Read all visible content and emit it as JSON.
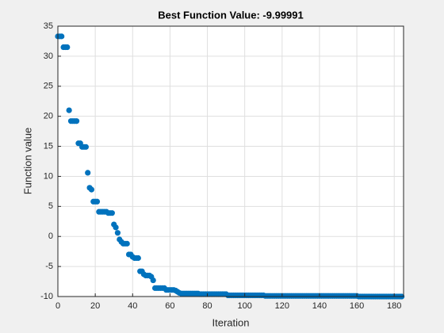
{
  "chart_data": {
    "type": "scatter",
    "title": "Best Function Value: -9.99991",
    "xlabel": "Iteration",
    "ylabel": "Function value",
    "color": "#0072bd",
    "grid": true,
    "xlim": [
      0,
      185
    ],
    "xticks": [
      0,
      20,
      40,
      60,
      80,
      100,
      120,
      140,
      160,
      180
    ],
    "ylim": [
      -10,
      35
    ],
    "yticks": [
      -10,
      -5,
      0,
      5,
      10,
      15,
      20,
      25,
      30,
      35
    ],
    "x": [
      0,
      1,
      2,
      3,
      4,
      5,
      6,
      7,
      8,
      9,
      10,
      11,
      12,
      13,
      14,
      15,
      16,
      17,
      18,
      19,
      20,
      21,
      22,
      23,
      24,
      25,
      26,
      27,
      28,
      29,
      30,
      31,
      32,
      33,
      34,
      35,
      36,
      37,
      38,
      39,
      40,
      41,
      42,
      43,
      44,
      45,
      46,
      47,
      48,
      49,
      50,
      51,
      52,
      53,
      54,
      55,
      56,
      57,
      58,
      59,
      60,
      61,
      62,
      63,
      64,
      65,
      66,
      67,
      68,
      69,
      70,
      71,
      72,
      73,
      74,
      75,
      76,
      77,
      78,
      79,
      80,
      81,
      82,
      83,
      84,
      85,
      86,
      87,
      88,
      89,
      90,
      91,
      92,
      93,
      94,
      95,
      96,
      97,
      98,
      99,
      100,
      101,
      102,
      103,
      104,
      105,
      106,
      107,
      108,
      109,
      110,
      111,
      112,
      113,
      114,
      115,
      116,
      117,
      118,
      119,
      120,
      121,
      122,
      123,
      124,
      125,
      126,
      127,
      128,
      129,
      130,
      131,
      132,
      133,
      134,
      135,
      136,
      137,
      138,
      139,
      140,
      141,
      142,
      143,
      144,
      145,
      146,
      147,
      148,
      149,
      150,
      151,
      152,
      153,
      154,
      155,
      156,
      157,
      158,
      159,
      160,
      161,
      162,
      163,
      164,
      165,
      166,
      167,
      168,
      169,
      170,
      171,
      172,
      173,
      174,
      175,
      176,
      177,
      178,
      179,
      180,
      181,
      182,
      183,
      184
    ],
    "values": [
      33.3,
      33.3,
      33.3,
      31.5,
      31.5,
      31.5,
      21,
      19.2,
      19.2,
      19.2,
      19.2,
      15.5,
      15.5,
      14.9,
      14.9,
      14.9,
      10.6,
      8.1,
      7.8,
      5.8,
      5.8,
      5.8,
      4.1,
      4.1,
      4.1,
      4.1,
      4.1,
      3.9,
      3.9,
      3.9,
      2.0,
      1.5,
      0.6,
      -0.5,
      -0.9,
      -1.2,
      -1.2,
      -1.2,
      -3.0,
      -3.0,
      -3.4,
      -3.6,
      -3.6,
      -3.6,
      -5.8,
      -5.8,
      -6.3,
      -6.5,
      -6.5,
      -6.5,
      -6.7,
      -7.3,
      -8.6,
      -8.6,
      -8.6,
      -8.6,
      -8.6,
      -8.6,
      -8.9,
      -8.9,
      -8.9,
      -8.9,
      -8.9,
      -9.0,
      -9.2,
      -9.4,
      -9.5,
      -9.5,
      -9.5,
      -9.5,
      -9.5,
      -9.5,
      -9.5,
      -9.5,
      -9.5,
      -9.5,
      -9.6,
      -9.6,
      -9.6,
      -9.6,
      -9.6,
      -9.6,
      -9.6,
      -9.6,
      -9.6,
      -9.6,
      -9.6,
      -9.6,
      -9.6,
      -9.6,
      -9.6,
      -9.8,
      -9.8,
      -9.8,
      -9.8,
      -9.8,
      -9.8,
      -9.8,
      -9.8,
      -9.8,
      -9.8,
      -9.8,
      -9.8,
      -9.8,
      -9.8,
      -9.8,
      -9.8,
      -9.8,
      -9.8,
      -9.8,
      -9.8,
      -9.9,
      -9.9,
      -9.9,
      -9.9,
      -9.9,
      -9.9,
      -9.9,
      -9.9,
      -9.9,
      -9.9,
      -9.9,
      -9.9,
      -9.9,
      -9.9,
      -9.9,
      -9.9,
      -9.9,
      -9.9,
      -9.9,
      -9.9,
      -9.9,
      -9.9,
      -9.9,
      -9.9,
      -9.9,
      -9.9,
      -9.9,
      -9.9,
      -9.9,
      -9.9,
      -9.9,
      -9.9,
      -9.9,
      -9.9,
      -9.9,
      -9.9,
      -9.9,
      -9.9,
      -9.9,
      -9.9,
      -9.9,
      -9.9,
      -9.9,
      -9.9,
      -9.9,
      -9.9,
      -9.9,
      -9.9,
      -9.9,
      -9.9,
      -9.99991,
      -9.99991,
      -9.99991,
      -9.99991,
      -9.99991,
      -9.99991,
      -9.99991,
      -9.99991,
      -9.99991,
      -9.99991,
      -9.99991,
      -9.99991,
      -9.99991,
      -9.99991,
      -9.99991,
      -9.99991,
      -9.99991,
      -9.99991,
      -9.99991,
      -9.99991,
      -9.99991,
      -9.99991,
      -9.99991,
      -9.99991
    ]
  }
}
